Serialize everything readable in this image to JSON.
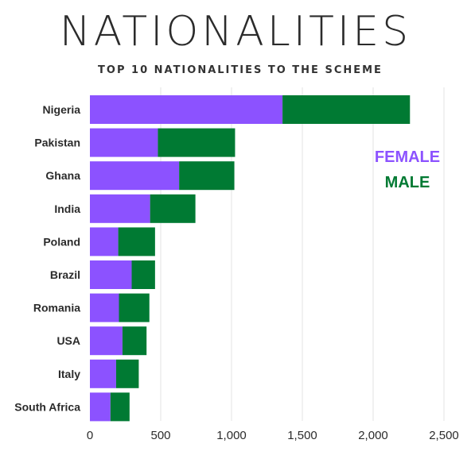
{
  "chart_data": {
    "type": "bar",
    "orientation": "horizontal",
    "stacked": true,
    "title": "NATIONALITIES",
    "subtitle": "TOP 10 NATIONALITIES TO THE SCHEME",
    "xlabel": "",
    "ylabel": "",
    "xlim": [
      0,
      2500
    ],
    "x_ticks": [
      0,
      500,
      1000,
      1500,
      2000,
      2500
    ],
    "x_tick_labels": [
      "0",
      "500",
      "1,000",
      "1,500",
      "2,000",
      "2,500"
    ],
    "grid": "vertical",
    "legend_position": "right",
    "categories": [
      "Nigeria",
      "Pakistan",
      "Ghana",
      "India",
      "Poland",
      "Brazil",
      "Romania",
      "USA",
      "Italy",
      "South Africa"
    ],
    "series": [
      {
        "name": "FEMALE",
        "color": "#8c52ff",
        "values": [
          1360,
          480,
          630,
          425,
          200,
          295,
          205,
          230,
          185,
          145
        ]
      },
      {
        "name": "MALE",
        "color": "#007a33",
        "values": [
          900,
          545,
          390,
          320,
          260,
          165,
          215,
          170,
          160,
          135
        ]
      }
    ]
  }
}
